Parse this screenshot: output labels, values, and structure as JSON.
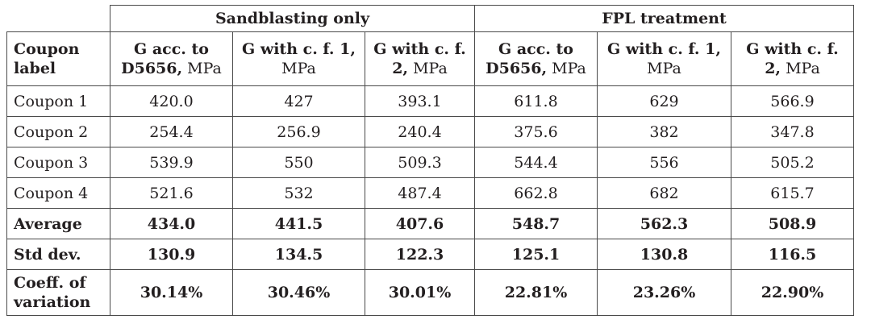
{
  "table": {
    "group_headers": [
      "Sandblasting only",
      "FPL treatment"
    ],
    "label_header": [
      "Coupon",
      "label"
    ],
    "column_headers": [
      {
        "line1": "G acc. to",
        "line2_bold": "D5656,",
        "unit": " MPa"
      },
      {
        "line1": "G with c. f. 1,",
        "line2_bold": "",
        "unit": "MPa"
      },
      {
        "line1": "G with c. f.",
        "line2_bold": "2,",
        "unit": " MPa"
      },
      {
        "line1": "G acc. to",
        "line2_bold": "D5656,",
        "unit": " MPa"
      },
      {
        "line1": "G with c. f. 1,",
        "line2_bold": "",
        "unit": "MPa"
      },
      {
        "line1": "G with c. f.",
        "line2_bold": "2,",
        "unit": " MPa"
      }
    ],
    "rows": [
      {
        "label": "Coupon 1",
        "values": [
          "420.0",
          "427",
          "393.1",
          "611.8",
          "629",
          "566.9"
        ]
      },
      {
        "label": "Coupon 2",
        "values": [
          "254.4",
          "256.9",
          "240.4",
          "375.6",
          "382",
          "347.8"
        ]
      },
      {
        "label": "Coupon 3",
        "values": [
          "539.9",
          "550",
          "509.3",
          "544.4",
          "556",
          "505.2"
        ]
      },
      {
        "label": "Coupon 4",
        "values": [
          "521.6",
          "532",
          "487.4",
          "662.8",
          "682",
          "615.7"
        ]
      },
      {
        "label": "Average",
        "values": [
          "434.0",
          "441.5",
          "407.6",
          "548.7",
          "562.3",
          "508.9"
        ]
      },
      {
        "label": "Std dev.",
        "values": [
          "130.9",
          "134.5",
          "122.3",
          "125.1",
          "130.8",
          "116.5"
        ]
      }
    ],
    "coeff_row": {
      "label_line1": "Coeff. of",
      "label_line2": "variation",
      "values": [
        "30.14%",
        "30.46%",
        "30.01%",
        "22.81%",
        "23.26%",
        "22.90%"
      ]
    }
  }
}
